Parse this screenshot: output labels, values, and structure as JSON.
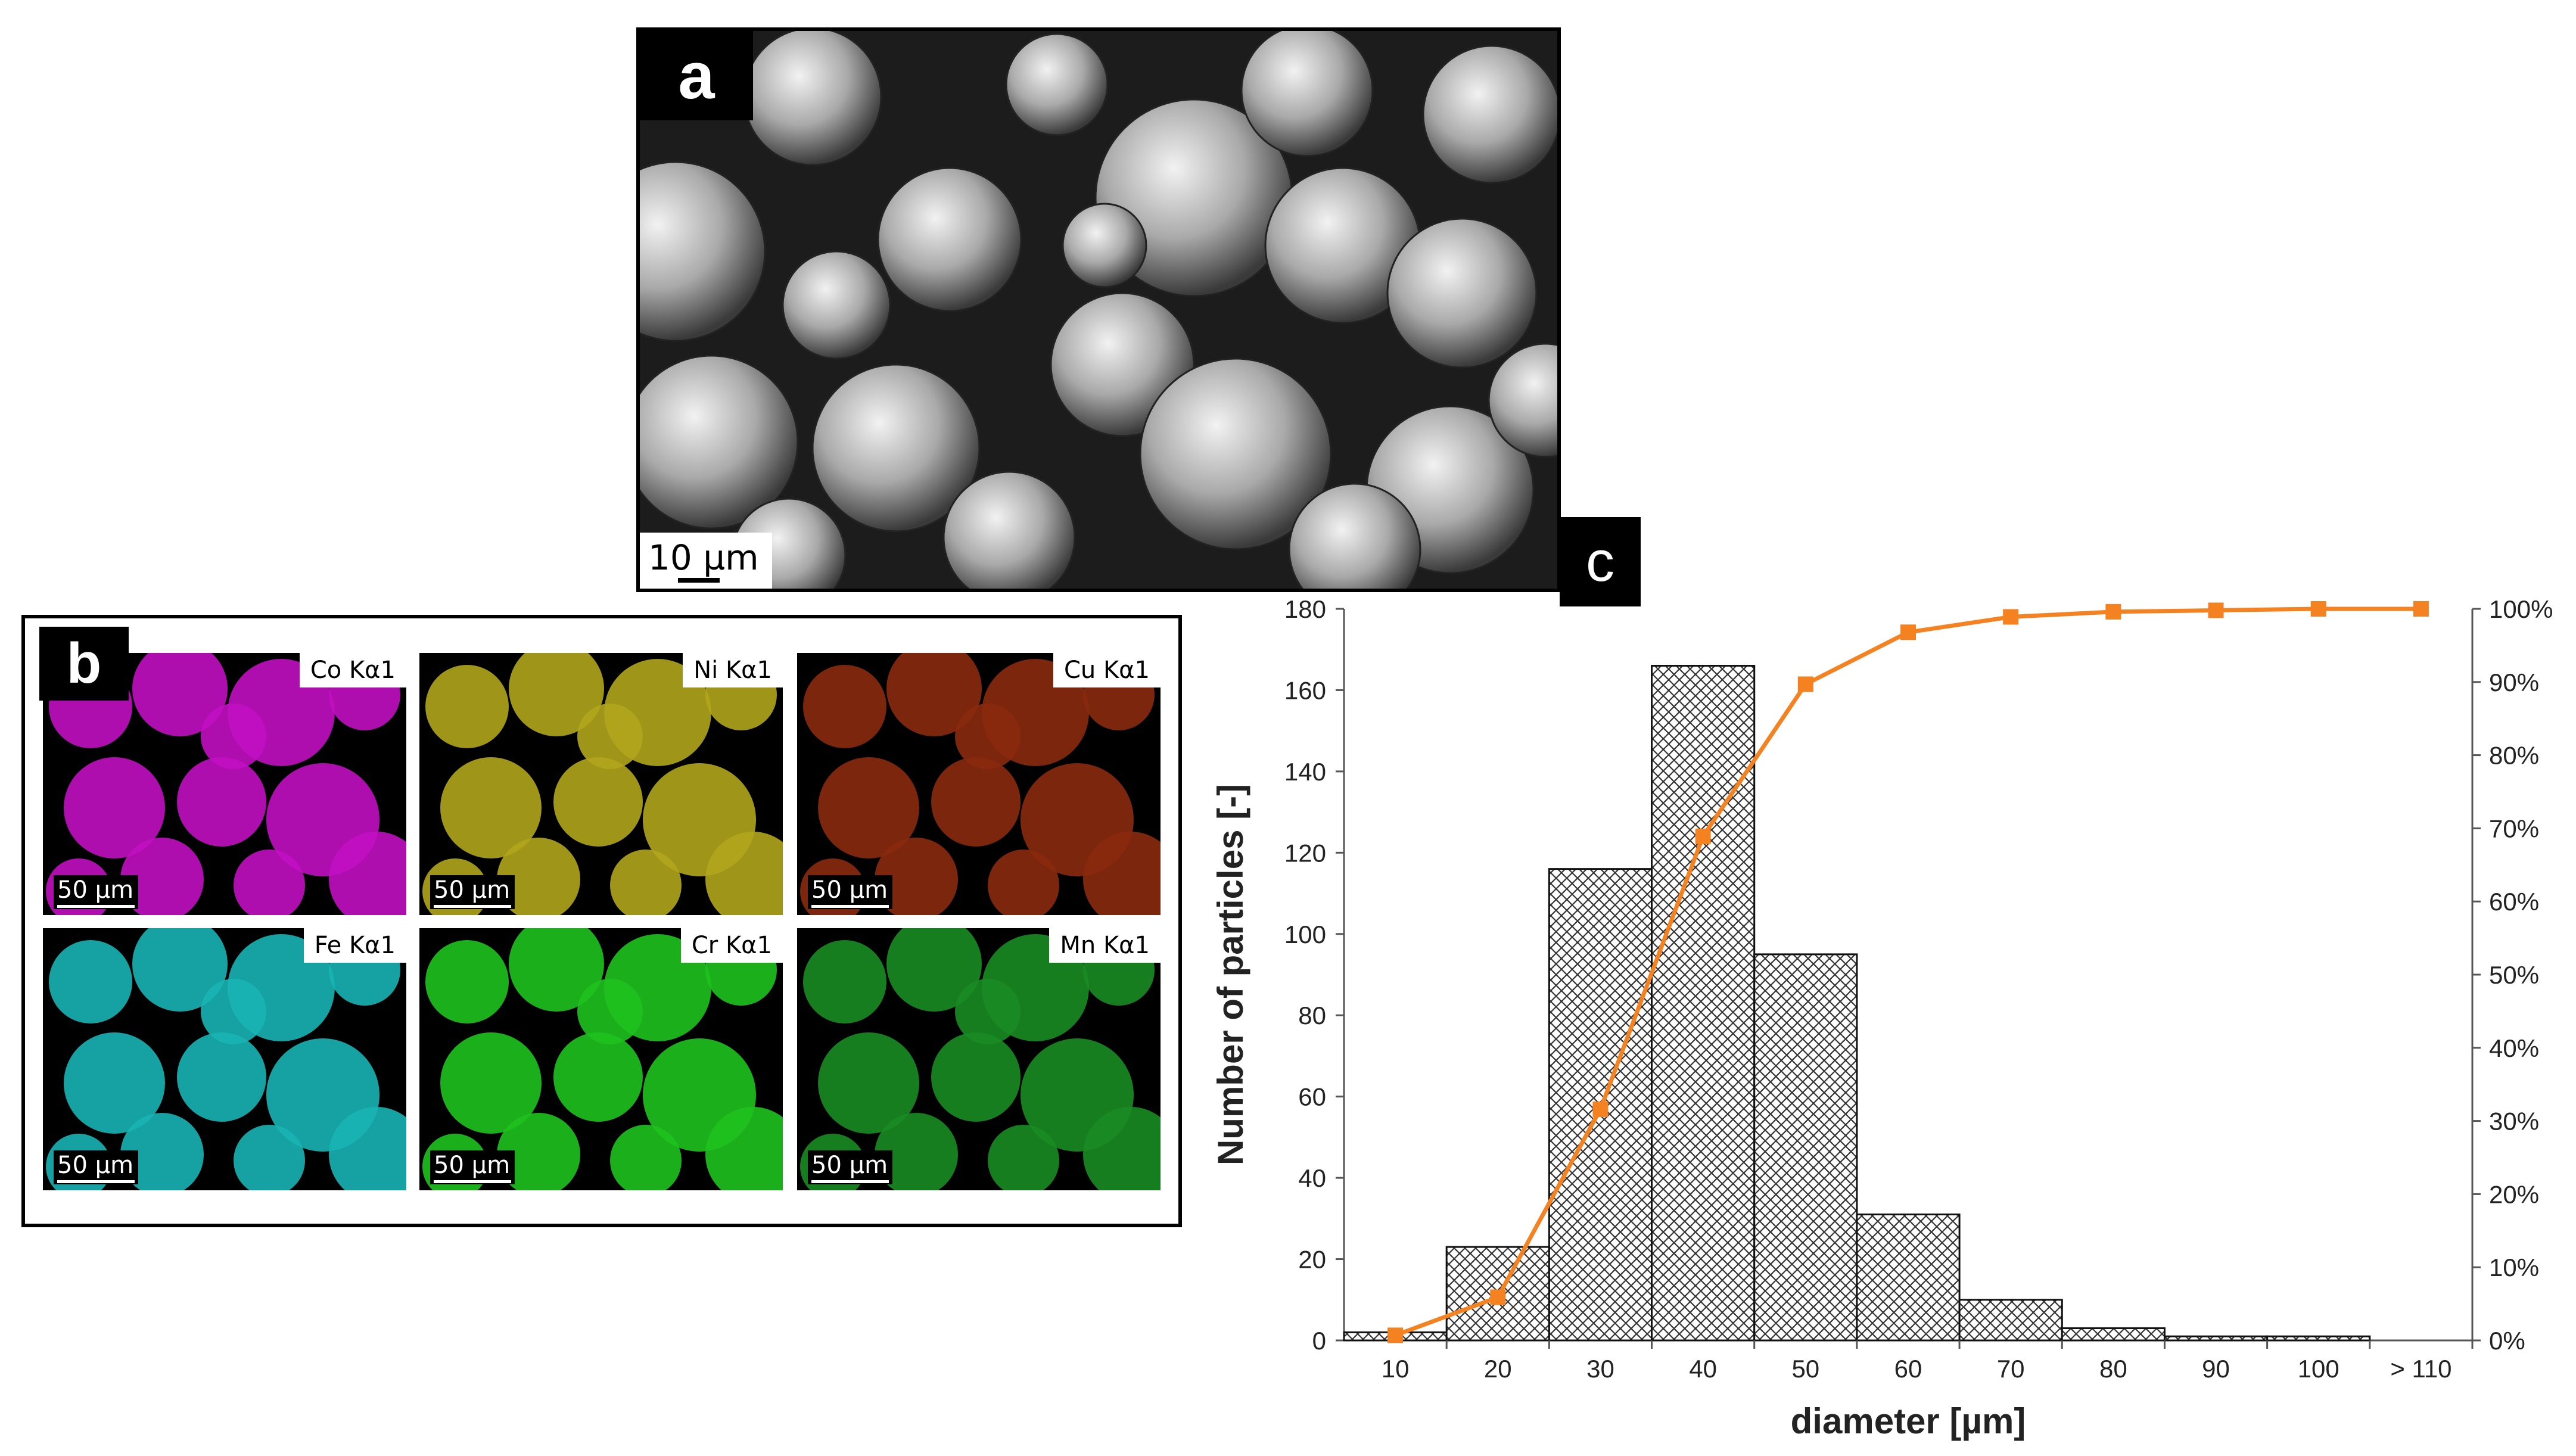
{
  "panel_a": {
    "label": "a",
    "scale": "10 µm"
  },
  "panel_b": {
    "label": "b",
    "maps": [
      {
        "element": "Co Kα1",
        "scale": "50 µm",
        "color": "#c20fc2"
      },
      {
        "element": "Ni Kα1",
        "scale": "50 µm",
        "color": "#b0a51c"
      },
      {
        "element": "Cu Kα1",
        "scale": "50 µm",
        "color": "#8a2a0e"
      },
      {
        "element": "Fe Kα1",
        "scale": "50 µm",
        "color": "#18b4b4"
      },
      {
        "element": "Cr Kα1",
        "scale": "50 µm",
        "color": "#1fc21f"
      },
      {
        "element": "Mn Kα1",
        "scale": "50 µm",
        "color": "#1a8c24"
      }
    ]
  },
  "panel_c": {
    "label": "c"
  },
  "chart_data": {
    "type": "bar",
    "categories": [
      "10",
      "20",
      "30",
      "40",
      "50",
      "60",
      "70",
      "80",
      "90",
      "100",
      "> 110"
    ],
    "series": [
      {
        "values": [
          2,
          23,
          116,
          166,
          95,
          31,
          10,
          3,
          1,
          1,
          0
        ],
        "axis": "left",
        "style": "hatched-bar",
        "color": "#222222"
      },
      {
        "values": [
          0.7,
          5.9,
          31.6,
          68.9,
          89.7,
          96.8,
          98.9,
          99.6,
          99.8,
          100,
          100
        ],
        "axis": "right",
        "style": "line-square-markers",
        "color": "#f58220"
      }
    ],
    "xlabel": "diameter [µm]",
    "ylabel": "Number of particles [-]",
    "ylim": [
      0,
      180
    ],
    "y_ticks": [
      "0",
      "20",
      "40",
      "60",
      "80",
      "100",
      "120",
      "140",
      "160",
      "180"
    ],
    "y2lim": [
      0,
      100
    ],
    "y2_ticks": [
      "0%",
      "10%",
      "20%",
      "30%",
      "40%",
      "50%",
      "60%",
      "70%",
      "80%",
      "90%",
      "100%"
    ],
    "grid": false
  }
}
